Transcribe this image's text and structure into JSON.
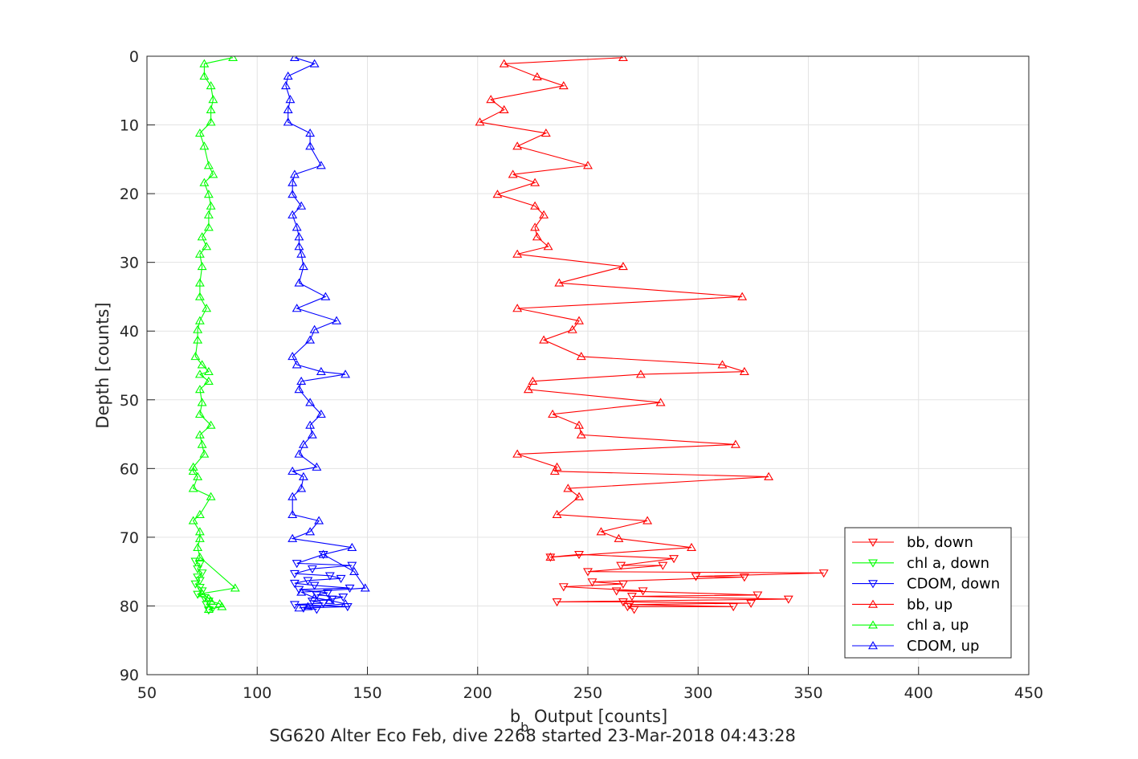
{
  "chart_data": {
    "type": "line",
    "title": "",
    "xlabel": "b_b Output [counts]",
    "xlabel_main": "b",
    "xlabel_sub": "b",
    "xlabel_rest": " Output [counts]",
    "ylabel": "Depth [counts]",
    "caption": "SG620 Alter Eco Feb, dive 2268 started 23-Mar-2018 04:43:28",
    "xlim": [
      50,
      450
    ],
    "ylim": [
      0,
      90
    ],
    "y_reversed": true,
    "grid": true,
    "legend_placement": "bottom-right",
    "xticks": [
      "50",
      "100",
      "150",
      "200",
      "250",
      "300",
      "350",
      "400",
      "450"
    ],
    "yticks": [
      "0",
      "10",
      "20",
      "30",
      "40",
      "50",
      "60",
      "70",
      "80",
      "90"
    ],
    "series": [
      {
        "name": "bb, down",
        "color": "#ff0000",
        "marker": "triangle-down",
        "points": [
          [
            233,
            72.9
          ],
          [
            246,
            72.5
          ],
          [
            289,
            73.1
          ],
          [
            265,
            74.1
          ],
          [
            284,
            74.1
          ],
          [
            250,
            75.0
          ],
          [
            357,
            75.2
          ],
          [
            299,
            75.7
          ],
          [
            321,
            75.8
          ],
          [
            252,
            76.5
          ],
          [
            266,
            76.8
          ],
          [
            239,
            77.2
          ],
          [
            275,
            77.8
          ],
          [
            263,
            77.8
          ],
          [
            327,
            78.4
          ],
          [
            270,
            78.6
          ],
          [
            341,
            79.0
          ],
          [
            236,
            79.4
          ],
          [
            266,
            79.4
          ],
          [
            324,
            79.6
          ],
          [
            269,
            79.8
          ],
          [
            316,
            80.1
          ],
          [
            268,
            80.1
          ],
          [
            271,
            80.5
          ]
        ]
      },
      {
        "name": "chl a, down",
        "color": "#00ff00",
        "marker": "triangle-down",
        "points": [
          [
            72,
            73.5
          ],
          [
            74,
            73.9
          ],
          [
            73,
            74.6
          ],
          [
            75,
            75.2
          ],
          [
            73,
            75.8
          ],
          [
            74,
            76.3
          ],
          [
            72,
            76.8
          ],
          [
            74,
            77.3
          ],
          [
            75,
            77.8
          ],
          [
            73,
            78.3
          ],
          [
            76,
            78.8
          ],
          [
            78,
            79.3
          ],
          [
            77,
            79.8
          ],
          [
            80,
            80.2
          ],
          [
            78,
            80.6
          ]
        ]
      },
      {
        "name": "CDOM, down",
        "color": "#0000ff",
        "marker": "triangle-down",
        "points": [
          [
            130,
            72.5
          ],
          [
            118,
            73.8
          ],
          [
            143,
            74.1
          ],
          [
            125,
            74.6
          ],
          [
            117,
            75.3
          ],
          [
            133,
            75.6
          ],
          [
            138,
            76.0
          ],
          [
            123,
            76.3
          ],
          [
            117,
            76.7
          ],
          [
            126,
            77.0
          ],
          [
            142,
            77.4
          ],
          [
            119,
            77.6
          ],
          [
            132,
            78.1
          ],
          [
            127,
            78.4
          ],
          [
            139,
            78.7
          ],
          [
            134,
            79.0
          ],
          [
            125,
            79.3
          ],
          [
            130,
            79.6
          ],
          [
            117,
            79.8
          ],
          [
            141,
            80.1
          ],
          [
            121,
            80.3
          ],
          [
            127,
            80.5
          ]
        ]
      },
      {
        "name": "bb, up",
        "color": "#ff0000",
        "marker": "triangle-up",
        "points": [
          [
            266,
            0.2
          ],
          [
            212,
            1.1
          ],
          [
            227,
            3.0
          ],
          [
            239,
            4.3
          ],
          [
            206,
            6.3
          ],
          [
            212,
            7.8
          ],
          [
            201,
            9.6
          ],
          [
            231,
            11.2
          ],
          [
            218,
            13.1
          ],
          [
            250,
            15.9
          ],
          [
            216,
            17.2
          ],
          [
            226,
            18.4
          ],
          [
            209,
            20.1
          ],
          [
            226,
            21.8
          ],
          [
            230,
            23.1
          ],
          [
            226,
            24.9
          ],
          [
            227,
            26.3
          ],
          [
            232,
            27.7
          ],
          [
            218,
            28.8
          ],
          [
            266,
            30.6
          ],
          [
            237,
            33.0
          ],
          [
            320,
            35.0
          ],
          [
            218,
            36.7
          ],
          [
            246,
            38.5
          ],
          [
            243,
            39.8
          ],
          [
            230,
            41.3
          ],
          [
            247,
            43.7
          ],
          [
            311,
            44.9
          ],
          [
            321,
            45.9
          ],
          [
            274,
            46.3
          ],
          [
            225,
            47.3
          ],
          [
            223,
            48.5
          ],
          [
            283,
            50.4
          ],
          [
            234,
            52.1
          ],
          [
            246,
            53.7
          ],
          [
            247,
            55.1
          ],
          [
            317,
            56.5
          ],
          [
            218,
            57.9
          ],
          [
            236,
            59.8
          ],
          [
            235,
            60.4
          ],
          [
            332,
            61.2
          ],
          [
            241,
            62.9
          ],
          [
            246,
            64.1
          ],
          [
            236,
            66.7
          ],
          [
            277,
            67.6
          ],
          [
            256,
            69.2
          ],
          [
            264,
            70.2
          ],
          [
            297,
            71.5
          ],
          [
            233,
            72.9
          ]
        ]
      },
      {
        "name": "chl a, up",
        "color": "#00ff00",
        "marker": "triangle-up",
        "points": [
          [
            89,
            0.2
          ],
          [
            76,
            1.1
          ],
          [
            76,
            2.9
          ],
          [
            79,
            4.3
          ],
          [
            80,
            6.3
          ],
          [
            79,
            7.8
          ],
          [
            79,
            9.6
          ],
          [
            74,
            11.2
          ],
          [
            76,
            13.1
          ],
          [
            78,
            15.9
          ],
          [
            80,
            17.2
          ],
          [
            76,
            18.4
          ],
          [
            78,
            20.1
          ],
          [
            79,
            21.8
          ],
          [
            78,
            23.1
          ],
          [
            78,
            24.9
          ],
          [
            75,
            26.3
          ],
          [
            77,
            27.7
          ],
          [
            74,
            28.8
          ],
          [
            75,
            30.6
          ],
          [
            74,
            33.0
          ],
          [
            74,
            35.0
          ],
          [
            77,
            36.7
          ],
          [
            74,
            38.5
          ],
          [
            73,
            39.8
          ],
          [
            73,
            41.3
          ],
          [
            72,
            43.7
          ],
          [
            75,
            44.9
          ],
          [
            78,
            45.9
          ],
          [
            74,
            46.3
          ],
          [
            78,
            47.3
          ],
          [
            74,
            48.5
          ],
          [
            75,
            50.4
          ],
          [
            74,
            52.1
          ],
          [
            79,
            53.7
          ],
          [
            74,
            55.1
          ],
          [
            75,
            56.5
          ],
          [
            76,
            57.9
          ],
          [
            71,
            59.8
          ],
          [
            71,
            60.4
          ],
          [
            73,
            61.2
          ],
          [
            71,
            62.9
          ],
          [
            79,
            64.1
          ],
          [
            74,
            66.7
          ],
          [
            71,
            67.6
          ],
          [
            74,
            69.2
          ],
          [
            74,
            70.2
          ],
          [
            73,
            71.5
          ],
          [
            74,
            72.9
          ],
          [
            90,
            77.4
          ],
          [
            75,
            78.2
          ],
          [
            78,
            78.9
          ],
          [
            79,
            79.3
          ],
          [
            83,
            79.7
          ],
          [
            84,
            80.1
          ],
          [
            78,
            80.5
          ]
        ]
      },
      {
        "name": "CDOM, up",
        "color": "#0000ff",
        "marker": "triangle-up",
        "points": [
          [
            117,
            0.2
          ],
          [
            126,
            1.1
          ],
          [
            114,
            2.9
          ],
          [
            113,
            4.3
          ],
          [
            115,
            6.3
          ],
          [
            114,
            7.8
          ],
          [
            114,
            9.6
          ],
          [
            124,
            11.2
          ],
          [
            124,
            13.1
          ],
          [
            129,
            15.9
          ],
          [
            117,
            17.2
          ],
          [
            116,
            18.4
          ],
          [
            116,
            20.1
          ],
          [
            120,
            21.8
          ],
          [
            116,
            23.1
          ],
          [
            118,
            24.9
          ],
          [
            119,
            26.3
          ],
          [
            119,
            27.7
          ],
          [
            120,
            28.8
          ],
          [
            121,
            30.6
          ],
          [
            119,
            33.0
          ],
          [
            131,
            35.0
          ],
          [
            118,
            36.7
          ],
          [
            136,
            38.5
          ],
          [
            126,
            39.8
          ],
          [
            124,
            41.3
          ],
          [
            116,
            43.7
          ],
          [
            118,
            44.9
          ],
          [
            129,
            45.9
          ],
          [
            140,
            46.3
          ],
          [
            120,
            47.3
          ],
          [
            119,
            48.5
          ],
          [
            124,
            50.4
          ],
          [
            129,
            52.1
          ],
          [
            124,
            53.7
          ],
          [
            125,
            55.1
          ],
          [
            121,
            56.5
          ],
          [
            119,
            57.9
          ],
          [
            127,
            59.8
          ],
          [
            116,
            60.4
          ],
          [
            121,
            61.2
          ],
          [
            120,
            62.9
          ],
          [
            116,
            64.1
          ],
          [
            116,
            66.7
          ],
          [
            128,
            67.6
          ],
          [
            124,
            69.2
          ],
          [
            116,
            70.2
          ],
          [
            143,
            71.5
          ],
          [
            130,
            72.5
          ],
          [
            144,
            75.0
          ],
          [
            149,
            77.4
          ],
          [
            120,
            78.0
          ],
          [
            126,
            78.8
          ],
          [
            133,
            79.2
          ],
          [
            140,
            79.7
          ],
          [
            123,
            80.1
          ],
          [
            119,
            80.3
          ]
        ]
      }
    ]
  }
}
